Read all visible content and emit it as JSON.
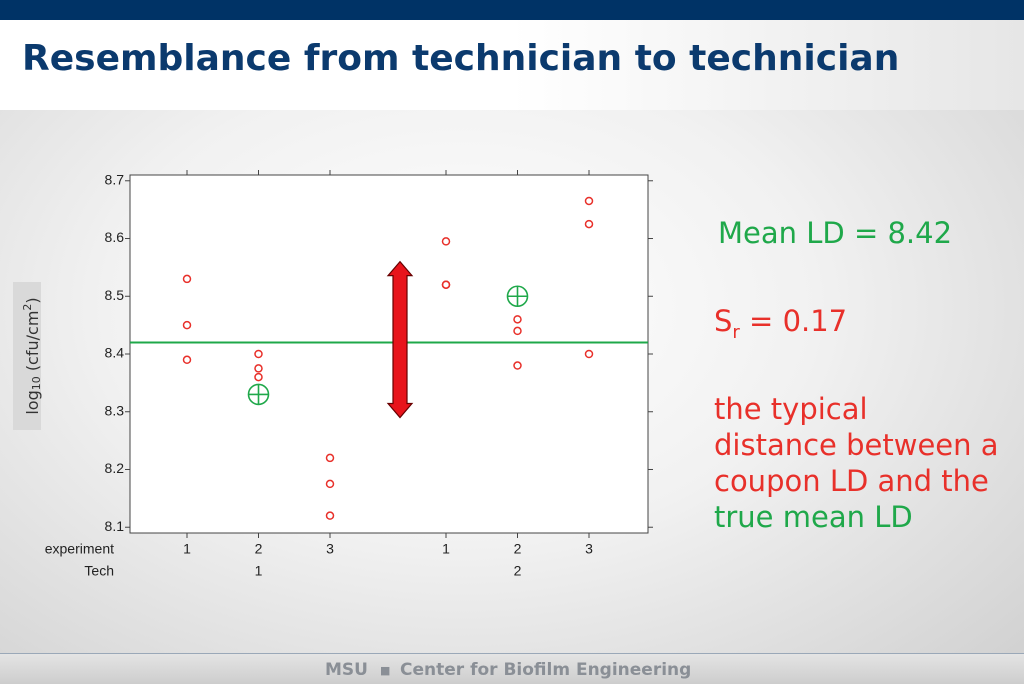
{
  "header": {
    "title": "Resemblance from technician to technician"
  },
  "chart_data": {
    "type": "scatter",
    "ylabel_parts": [
      "log",
      "10",
      " (cfu/cm",
      "2",
      ")"
    ],
    "row_labels": [
      "experiment",
      "Tech"
    ],
    "categories": [
      "1",
      "2",
      "3",
      "1",
      "2",
      "3"
    ],
    "groups": [
      "1",
      "2"
    ],
    "replicates": [
      [
        8.53,
        8.45,
        8.39
      ],
      [
        8.4,
        8.375,
        8.36
      ],
      [
        8.22,
        8.175,
        8.12
      ],
      [
        8.595,
        8.52,
        8.52
      ],
      [
        8.46,
        8.44,
        8.38
      ],
      [
        8.665,
        8.625,
        8.4
      ]
    ],
    "point_color": "#e8302a",
    "experiment_means": [
      null,
      8.33,
      null,
      null,
      8.5,
      null
    ],
    "mean_color": "#1fa84a",
    "mean_line": 8.42,
    "arrow": [
      8.56,
      8.29
    ],
    "arrow_color": "#e8141b",
    "ylim": [
      8.09,
      8.71
    ],
    "yticks": [
      8.1,
      8.2,
      8.3,
      8.4,
      8.5,
      8.6,
      8.7
    ]
  },
  "annotations": {
    "mean_text": "Mean LD = 8.42",
    "sr_symbol": "S",
    "sr_subscript": "r",
    "sr_text": " = 0.17",
    "description": "the typical distance between a coupon LD and the ",
    "description_highlight": "true mean LD"
  },
  "footer": {
    "left": "MSU",
    "right": "Center for Biofilm Engineering"
  }
}
